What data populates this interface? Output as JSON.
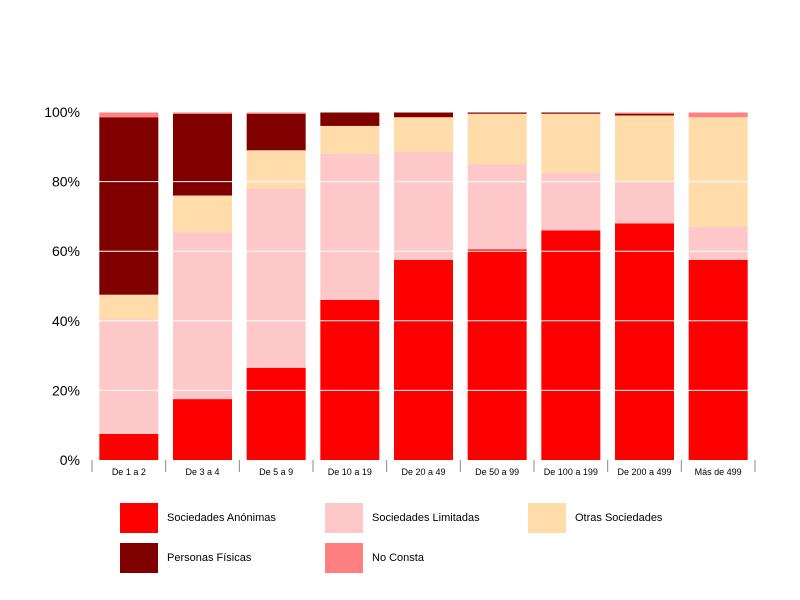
{
  "chart_data": {
    "type": "bar",
    "stacked": true,
    "percent": true,
    "categories": [
      "De 1 a 2",
      "De 3 a 4",
      "De 5 a 9",
      "De 10 a 19",
      "De 20 a 49",
      "De 50 a 99",
      "De 100 a 199",
      "De 200 a 499",
      "Más de 499"
    ],
    "yticks": [
      "0%",
      "20%",
      "40%",
      "60%",
      "80%",
      "100%"
    ],
    "ylim": [
      0,
      100
    ],
    "grid": true,
    "legend_position": "bottom",
    "series": [
      {
        "name": "Sociedades Anónimas",
        "color": "#ff0000",
        "values": [
          7.5,
          17.5,
          26.5,
          46,
          57.5,
          60.5,
          66,
          68,
          57.5
        ]
      },
      {
        "name": "Sociedades Limitadas",
        "color": "#ffc8c8",
        "values": [
          33,
          48,
          51.5,
          42,
          31,
          24.5,
          16.5,
          12,
          9.5
        ]
      },
      {
        "name": "Otras Sociedades",
        "color": "#ffdcaa",
        "values": [
          7,
          10.5,
          11,
          8,
          10,
          14.5,
          17,
          19,
          31.5
        ]
      },
      {
        "name": "Personas Físicas",
        "color": "#800000",
        "values": [
          51,
          23.5,
          10.5,
          4,
          1.5,
          0.5,
          0.5,
          0.5,
          0
        ]
      },
      {
        "name": "No Consta",
        "color": "#ff8080",
        "values": [
          1.5,
          0.5,
          0.5,
          0,
          0,
          0,
          0,
          0.5,
          1.5
        ]
      }
    ]
  },
  "legend": {
    "items": [
      {
        "label": "Sociedades Anónimas",
        "color": "#ff0000"
      },
      {
        "label": "Sociedades Limitadas",
        "color": "#ffc8c8"
      },
      {
        "label": "Otras Sociedades",
        "color": "#ffdcaa"
      },
      {
        "label": "Personas Físicas",
        "color": "#800000"
      },
      {
        "label": "No Consta",
        "color": "#ff8080"
      }
    ]
  }
}
